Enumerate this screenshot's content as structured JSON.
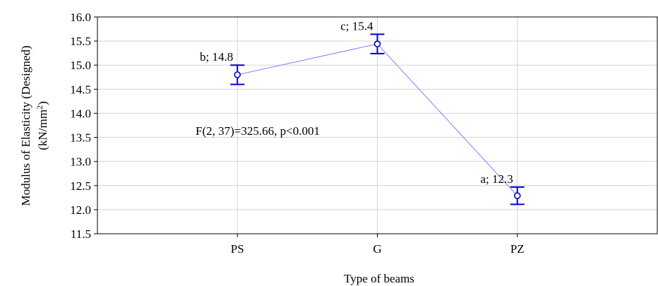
{
  "chart_data": {
    "type": "line",
    "title": "",
    "xlabel": "Type of beams",
    "ylabel": "Modulus of Elasticity (Designed)",
    "ylabel_unit_base": "(kN/mm",
    "ylabel_unit_sup": "2",
    "ylabel_unit_tail": ")",
    "categories": [
      "PS",
      "G",
      "PZ"
    ],
    "series": [
      {
        "values": [
          14.8,
          15.44,
          12.29
        ],
        "error_low": [
          14.6,
          15.24,
          12.11
        ],
        "error_high": [
          15.0,
          15.64,
          12.47
        ],
        "labels": [
          "b; 14.8",
          "c; 15.4",
          "a; 12.3"
        ]
      }
    ],
    "ylim": [
      11.5,
      16.0
    ],
    "yticks": [
      "11.5",
      "12.0",
      "12.5",
      "13.0",
      "13.5",
      "14.0",
      "14.5",
      "15.0",
      "15.5",
      "16.0"
    ],
    "annotation": "F(2, 37)=325.66, p<0.001",
    "grid": true,
    "colors": {
      "series": "#0000cc",
      "line": "#8080ff",
      "grid": "#d3d3d3",
      "axis": "#000000"
    }
  }
}
